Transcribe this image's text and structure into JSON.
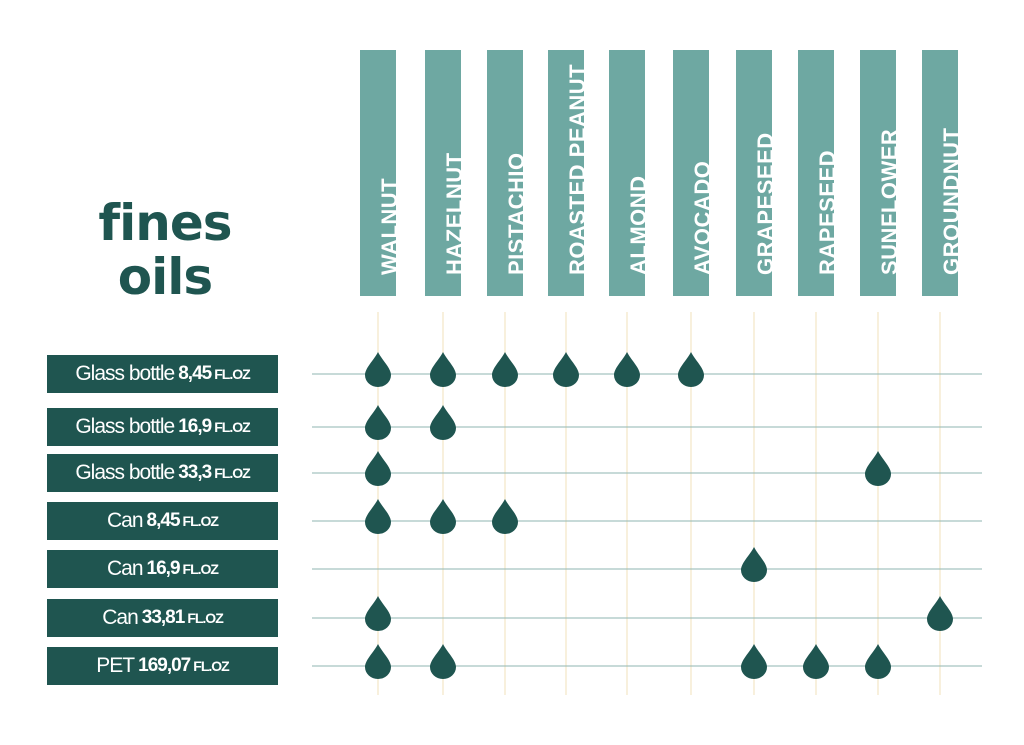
{
  "title": {
    "line1": "fines",
    "line2": "oils"
  },
  "colors": {
    "dark": "#1f5550",
    "header": "#6ea8a2",
    "rowline": "#8fb5b1",
    "colline": "#f3e7c6"
  },
  "chart_data": {
    "type": "table",
    "columns": [
      "WALNUT",
      "HAZELNUT",
      "PISTACHIO",
      "ROASTED PEANUT",
      "ALMOND",
      "AVOCADO",
      "GRAPESEED",
      "RAPESEED",
      "SUNFLOWER",
      "GROUNDNUT"
    ],
    "rows": [
      {
        "container": "Glass bottle",
        "volume": "8,45",
        "unit": "FL.OZ",
        "available": [
          "WALNUT",
          "HAZELNUT",
          "PISTACHIO",
          "ROASTED PEANUT",
          "ALMOND",
          "AVOCADO"
        ]
      },
      {
        "container": "Glass bottle",
        "volume": "16,9",
        "unit": "FL.OZ",
        "available": [
          "WALNUT",
          "HAZELNUT"
        ]
      },
      {
        "container": "Glass bottle",
        "volume": "33,3",
        "unit": "FL.OZ",
        "available": [
          "WALNUT",
          "SUNFLOWER"
        ]
      },
      {
        "container": "Can",
        "volume": "8,45",
        "unit": "FL.OZ",
        "available": [
          "WALNUT",
          "HAZELNUT",
          "PISTACHIO"
        ]
      },
      {
        "container": "Can",
        "volume": "16,9",
        "unit": "FL.OZ",
        "available": [
          "GRAPESEED"
        ]
      },
      {
        "container": "Can",
        "volume": "33,81",
        "unit": "FL.OZ",
        "available": [
          "WALNUT",
          "GROUNDNUT"
        ]
      },
      {
        "container": "PET",
        "volume": "169,07",
        "unit": "FL.OZ",
        "available": [
          "WALNUT",
          "HAZELNUT",
          "GRAPESEED",
          "RAPESEED",
          "SUNFLOWER"
        ]
      }
    ]
  }
}
